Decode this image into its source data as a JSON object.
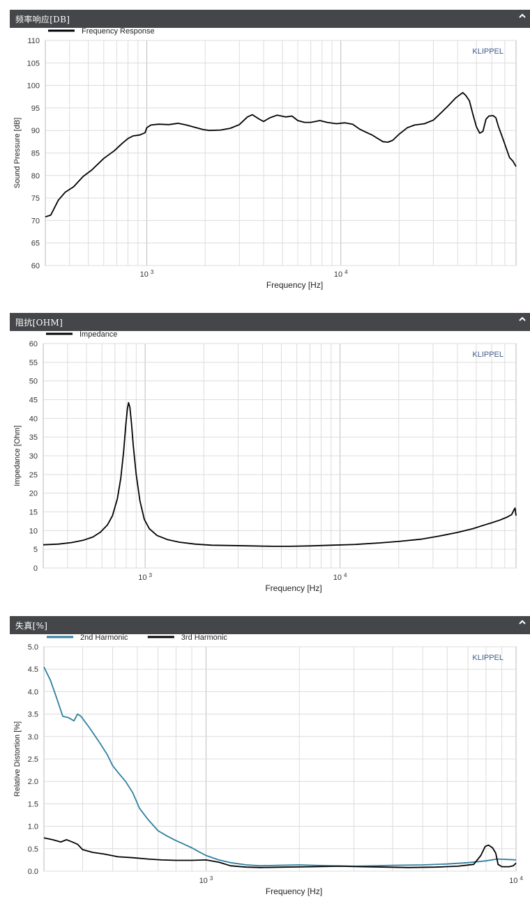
{
  "charts": [
    {
      "header_title": "频率响应[DB]",
      "chart_data": {
        "type": "line",
        "title": "",
        "xlabel": "Frequency  [Hz]",
        "ylabel": "Sound Pressure  [dB]",
        "x_scale": "log",
        "xlim": [
          300,
          80000
        ],
        "ylim": [
          60,
          110
        ],
        "yticks": [
          60,
          65,
          70,
          75,
          80,
          85,
          90,
          95,
          100,
          105,
          110
        ],
        "ytick_labels": [
          "60",
          "65",
          "70",
          "75",
          "80",
          "85",
          "90",
          "95",
          "100",
          "105",
          "110"
        ],
        "xticks": [
          1000,
          10000
        ],
        "xtick_labels": [
          "10 3",
          "10 4"
        ],
        "grid": true,
        "watermark": "KLIPPEL",
        "legend_position": "top-left",
        "series": [
          {
            "name": "Frequency Response",
            "color": "#000000",
            "points": [
              [
                300,
                70.8
              ],
              [
                320,
                71.2
              ],
              [
                350,
                74.5
              ],
              [
                380,
                76.3
              ],
              [
                420,
                77.5
              ],
              [
                470,
                79.8
              ],
              [
                520,
                81.2
              ],
              [
                600,
                83.8
              ],
              [
                680,
                85.5
              ],
              [
                750,
                87.2
              ],
              [
                800,
                88.2
              ],
              [
                850,
                88.8
              ],
              [
                920,
                89.0
              ],
              [
                980,
                89.5
              ],
              [
                1000,
                90.6
              ],
              [
                1050,
                91.2
              ],
              [
                1150,
                91.4
              ],
              [
                1300,
                91.3
              ],
              [
                1450,
                91.6
              ],
              [
                1600,
                91.2
              ],
              [
                1800,
                90.6
              ],
              [
                1950,
                90.2
              ],
              [
                2100,
                90.0
              ],
              [
                2400,
                90.1
              ],
              [
                2700,
                90.5
              ],
              [
                3000,
                91.3
              ],
              [
                3300,
                93.0
              ],
              [
                3500,
                93.5
              ],
              [
                3800,
                92.5
              ],
              [
                4000,
                92.0
              ],
              [
                4300,
                92.8
              ],
              [
                4700,
                93.4
              ],
              [
                5200,
                93.0
              ],
              [
                5600,
                93.2
              ],
              [
                6000,
                92.2
              ],
              [
                6500,
                91.8
              ],
              [
                7000,
                91.8
              ],
              [
                7800,
                92.2
              ],
              [
                8500,
                91.8
              ],
              [
                9500,
                91.5
              ],
              [
                10500,
                91.7
              ],
              [
                11500,
                91.4
              ],
              [
                12500,
                90.3
              ],
              [
                13500,
                89.6
              ],
              [
                14500,
                89.0
              ],
              [
                15500,
                88.2
              ],
              [
                16500,
                87.5
              ],
              [
                17500,
                87.4
              ],
              [
                18500,
                87.8
              ],
              [
                20000,
                89.2
              ],
              [
                22000,
                90.6
              ],
              [
                24000,
                91.2
              ],
              [
                27000,
                91.5
              ],
              [
                30000,
                92.3
              ],
              [
                33000,
                94.0
              ],
              [
                36000,
                95.6
              ],
              [
                39000,
                97.2
              ],
              [
                41000,
                97.9
              ],
              [
                42500,
                98.4
              ],
              [
                44000,
                97.8
              ],
              [
                46000,
                96.6
              ],
              [
                48000,
                93.5
              ],
              [
                50000,
                90.8
              ],
              [
                52000,
                89.4
              ],
              [
                54000,
                89.8
              ],
              [
                56000,
                92.5
              ],
              [
                58000,
                93.2
              ],
              [
                61000,
                93.3
              ],
              [
                63000,
                92.8
              ],
              [
                65000,
                90.8
              ],
              [
                68000,
                88.5
              ],
              [
                71000,
                86.2
              ],
              [
                74000,
                84.0
              ],
              [
                77000,
                83.2
              ],
              [
                80000,
                82.0
              ]
            ]
          }
        ]
      }
    },
    {
      "header_title": "阻抗[OHM]",
      "chart_data": {
        "type": "line",
        "title": "",
        "xlabel": "Frequency  [Hz]",
        "ylabel": "Impedance  [Ohm]",
        "x_scale": "log",
        "xlim": [
          300,
          80000
        ],
        "ylim": [
          0,
          60
        ],
        "yticks": [
          0,
          5,
          10,
          15,
          20,
          25,
          30,
          35,
          40,
          45,
          50,
          55,
          60
        ],
        "ytick_labels": [
          "0",
          "5",
          "10",
          "15",
          "20",
          "25",
          "30",
          "35",
          "40",
          "45",
          "50",
          "55",
          "60"
        ],
        "xticks": [
          1000,
          10000
        ],
        "xtick_labels": [
          "10 3",
          "10 4"
        ],
        "grid": true,
        "watermark": "KLIPPEL",
        "legend_position": "top-left",
        "series": [
          {
            "name": "Impedance",
            "color": "#000000",
            "points": [
              [
                300,
                6.2
              ],
              [
                360,
                6.4
              ],
              [
                420,
                6.8
              ],
              [
                480,
                7.4
              ],
              [
                540,
                8.3
              ],
              [
                590,
                9.6
              ],
              [
                640,
                11.5
              ],
              [
                680,
                14.0
              ],
              [
                720,
                18.5
              ],
              [
                750,
                24.0
              ],
              [
                775,
                31.0
              ],
              [
                795,
                38.0
              ],
              [
                810,
                42.5
              ],
              [
                822,
                44.2
              ],
              [
                835,
                43.0
              ],
              [
                850,
                39.0
              ],
              [
                870,
                32.5
              ],
              [
                900,
                25.0
              ],
              [
                940,
                18.0
              ],
              [
                990,
                13.0
              ],
              [
                1050,
                10.5
              ],
              [
                1150,
                8.7
              ],
              [
                1300,
                7.6
              ],
              [
                1500,
                6.9
              ],
              [
                1800,
                6.4
              ],
              [
                2200,
                6.1
              ],
              [
                2800,
                6.0
              ],
              [
                3500,
                5.9
              ],
              [
                4500,
                5.8
              ],
              [
                5500,
                5.8
              ],
              [
                7000,
                5.9
              ],
              [
                9000,
                6.1
              ],
              [
                12000,
                6.3
              ],
              [
                16000,
                6.7
              ],
              [
                20000,
                7.1
              ],
              [
                26000,
                7.7
              ],
              [
                32000,
                8.5
              ],
              [
                40000,
                9.5
              ],
              [
                48000,
                10.5
              ],
              [
                55000,
                11.5
              ],
              [
                60000,
                12.1
              ],
              [
                66000,
                12.8
              ],
              [
                72000,
                13.6
              ],
              [
                76000,
                14.3
              ],
              [
                78000,
                15.5
              ],
              [
                79000,
                16.0
              ],
              [
                80000,
                14.0
              ]
            ]
          }
        ]
      }
    },
    {
      "header_title": "失真[%]",
      "chart_data": {
        "type": "line",
        "title": "",
        "xlabel": "Frequency  [Hz]",
        "ylabel": "Relative Distortion  [%]",
        "x_scale": "log",
        "xlim": [
          300,
          10000
        ],
        "ylim": [
          0,
          5.0
        ],
        "yticks": [
          0,
          0.5,
          1.0,
          1.5,
          2.0,
          2.5,
          3.0,
          3.5,
          4.0,
          4.5,
          5.0
        ],
        "ytick_labels": [
          "0.0",
          "0.5",
          "1.0",
          "1.5",
          "2.0",
          "2.5",
          "3.0",
          "3.5",
          "4.0",
          "4.5",
          "5.0"
        ],
        "xticks": [
          1000,
          10000
        ],
        "xtick_labels": [
          "10 3",
          "10 4"
        ],
        "grid": true,
        "watermark": "KLIPPEL",
        "legend_position": "top-left",
        "series": [
          {
            "name": "2nd Harmonic",
            "color": "#2f7fa0",
            "points": [
              [
                300,
                4.55
              ],
              [
                315,
                4.25
              ],
              [
                330,
                3.85
              ],
              [
                345,
                3.45
              ],
              [
                360,
                3.42
              ],
              [
                375,
                3.35
              ],
              [
                385,
                3.5
              ],
              [
                395,
                3.45
              ],
              [
                420,
                3.2
              ],
              [
                450,
                2.9
              ],
              [
                480,
                2.6
              ],
              [
                500,
                2.35
              ],
              [
                520,
                2.2
              ],
              [
                550,
                2.0
              ],
              [
                580,
                1.75
              ],
              [
                610,
                1.4
              ],
              [
                650,
                1.15
              ],
              [
                700,
                0.9
              ],
              [
                750,
                0.78
              ],
              [
                800,
                0.68
              ],
              [
                850,
                0.6
              ],
              [
                900,
                0.52
              ],
              [
                950,
                0.43
              ],
              [
                1000,
                0.35
              ],
              [
                1100,
                0.25
              ],
              [
                1200,
                0.19
              ],
              [
                1350,
                0.14
              ],
              [
                1500,
                0.12
              ],
              [
                1700,
                0.13
              ],
              [
                2000,
                0.14
              ],
              [
                2500,
                0.12
              ],
              [
                3000,
                0.11
              ],
              [
                3500,
                0.12
              ],
              [
                4000,
                0.13
              ],
              [
                5000,
                0.14
              ],
              [
                6000,
                0.16
              ],
              [
                7000,
                0.19
              ],
              [
                8000,
                0.23
              ],
              [
                8700,
                0.27
              ],
              [
                9500,
                0.26
              ],
              [
                10000,
                0.25
              ]
            ]
          },
          {
            "name": "3rd Harmonic",
            "color": "#000000",
            "points": [
              [
                300,
                0.74
              ],
              [
                320,
                0.7
              ],
              [
                340,
                0.65
              ],
              [
                355,
                0.7
              ],
              [
                370,
                0.65
              ],
              [
                385,
                0.6
              ],
              [
                400,
                0.48
              ],
              [
                430,
                0.42
              ],
              [
                470,
                0.38
              ],
              [
                520,
                0.32
              ],
              [
                580,
                0.3
              ],
              [
                650,
                0.27
              ],
              [
                720,
                0.25
              ],
              [
                800,
                0.24
              ],
              [
                900,
                0.24
              ],
              [
                1000,
                0.25
              ],
              [
                1100,
                0.2
              ],
              [
                1200,
                0.12
              ],
              [
                1350,
                0.09
              ],
              [
                1500,
                0.08
              ],
              [
                1800,
                0.09
              ],
              [
                2200,
                0.1
              ],
              [
                2700,
                0.11
              ],
              [
                3200,
                0.1
              ],
              [
                3800,
                0.09
              ],
              [
                4500,
                0.08
              ],
              [
                5500,
                0.09
              ],
              [
                6500,
                0.11
              ],
              [
                7300,
                0.15
              ],
              [
                7700,
                0.35
              ],
              [
                7950,
                0.55
              ],
              [
                8150,
                0.58
              ],
              [
                8400,
                0.52
              ],
              [
                8600,
                0.4
              ],
              [
                8750,
                0.15
              ],
              [
                9000,
                0.1
              ],
              [
                9500,
                0.1
              ],
              [
                9800,
                0.12
              ],
              [
                10000,
                0.18
              ]
            ]
          }
        ]
      }
    }
  ]
}
